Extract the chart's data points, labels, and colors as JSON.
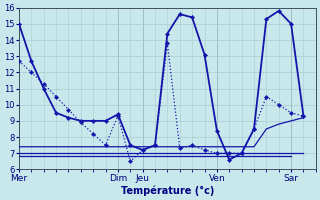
{
  "background_color": "#c8e8ec",
  "line_color": "#1414aa",
  "xlabel": "Température (°c)",
  "ylim": [
    6,
    16
  ],
  "yticks": [
    6,
    7,
    8,
    9,
    10,
    11,
    12,
    13,
    14,
    15,
    16
  ],
  "day_labels": [
    "Mer",
    "Dim",
    "Jeu",
    "Ven",
    "Sar"
  ],
  "day_x": [
    0,
    8,
    10,
    16,
    22
  ],
  "xlim": [
    0,
    24
  ],
  "series": [
    {
      "x": [
        0,
        1,
        2,
        3,
        4,
        5,
        6,
        7,
        8,
        9,
        10,
        11,
        12,
        13,
        14,
        15,
        16,
        17,
        18,
        19,
        20,
        21,
        22,
        23
      ],
      "y": [
        15,
        12.7,
        11,
        9.5,
        9.2,
        9.0,
        9.0,
        9.0,
        9.4,
        7.5,
        7.2,
        7.5,
        14.4,
        15.6,
        15.4,
        13.1,
        8.4,
        6.6,
        7.0,
        8.5,
        15.3,
        15.8,
        15.0,
        9.3
      ],
      "linestyle": "-",
      "marker": true,
      "linewidth": 1.3
    },
    {
      "x": [
        0,
        1,
        2,
        3,
        4,
        5,
        6,
        7,
        8,
        9,
        10,
        11,
        12,
        13,
        14,
        15,
        16,
        17,
        18,
        19,
        20,
        21,
        22,
        23
      ],
      "y": [
        12.7,
        12.0,
        11.3,
        10.5,
        9.7,
        8.9,
        8.2,
        7.5,
        9.3,
        6.5,
        7.2,
        7.5,
        13.8,
        7.3,
        7.5,
        7.2,
        7.0,
        7.0,
        7.0,
        8.5,
        10.5,
        10.0,
        9.5,
        9.3
      ],
      "linestyle": ":",
      "marker": true,
      "linewidth": 0.9
    },
    {
      "x": [
        0,
        5,
        10,
        15,
        16,
        17,
        18,
        19,
        20,
        21,
        22,
        23
      ],
      "y": [
        7.4,
        7.4,
        7.4,
        7.4,
        7.4,
        7.4,
        7.4,
        7.4,
        8.5,
        8.8,
        9.0,
        9.2
      ],
      "linestyle": "-",
      "marker": false,
      "linewidth": 0.9
    },
    {
      "x": [
        0,
        23
      ],
      "y": [
        7.0,
        7.0
      ],
      "linestyle": "-",
      "marker": false,
      "linewidth": 0.9
    },
    {
      "x": [
        0,
        22
      ],
      "y": [
        6.8,
        6.8
      ],
      "linestyle": "-",
      "marker": false,
      "linewidth": 0.9
    }
  ]
}
